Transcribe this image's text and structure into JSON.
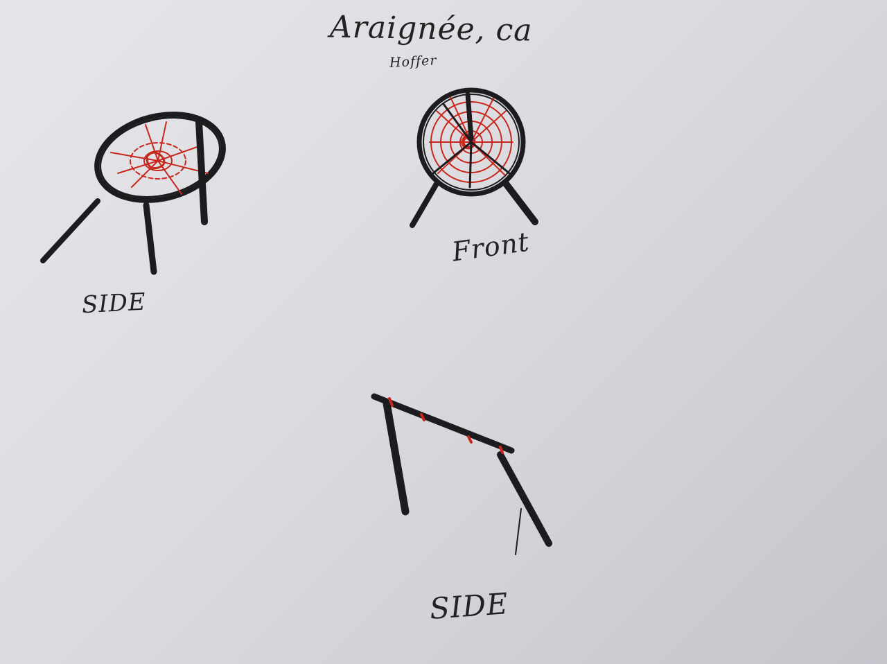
{
  "sheet": {
    "title": "Araignée, ca",
    "subtitle": "Hoffer",
    "sketches": [
      {
        "name": "side-view-chair",
        "label": "SIDE"
      },
      {
        "name": "front-view-chair",
        "label": "Front"
      },
      {
        "name": "side-view-frame",
        "label": "SIDE"
      }
    ]
  },
  "colors": {
    "paper": "#dcdce1",
    "ink": "#1c1c1f",
    "red_ink": "#c8281c"
  }
}
